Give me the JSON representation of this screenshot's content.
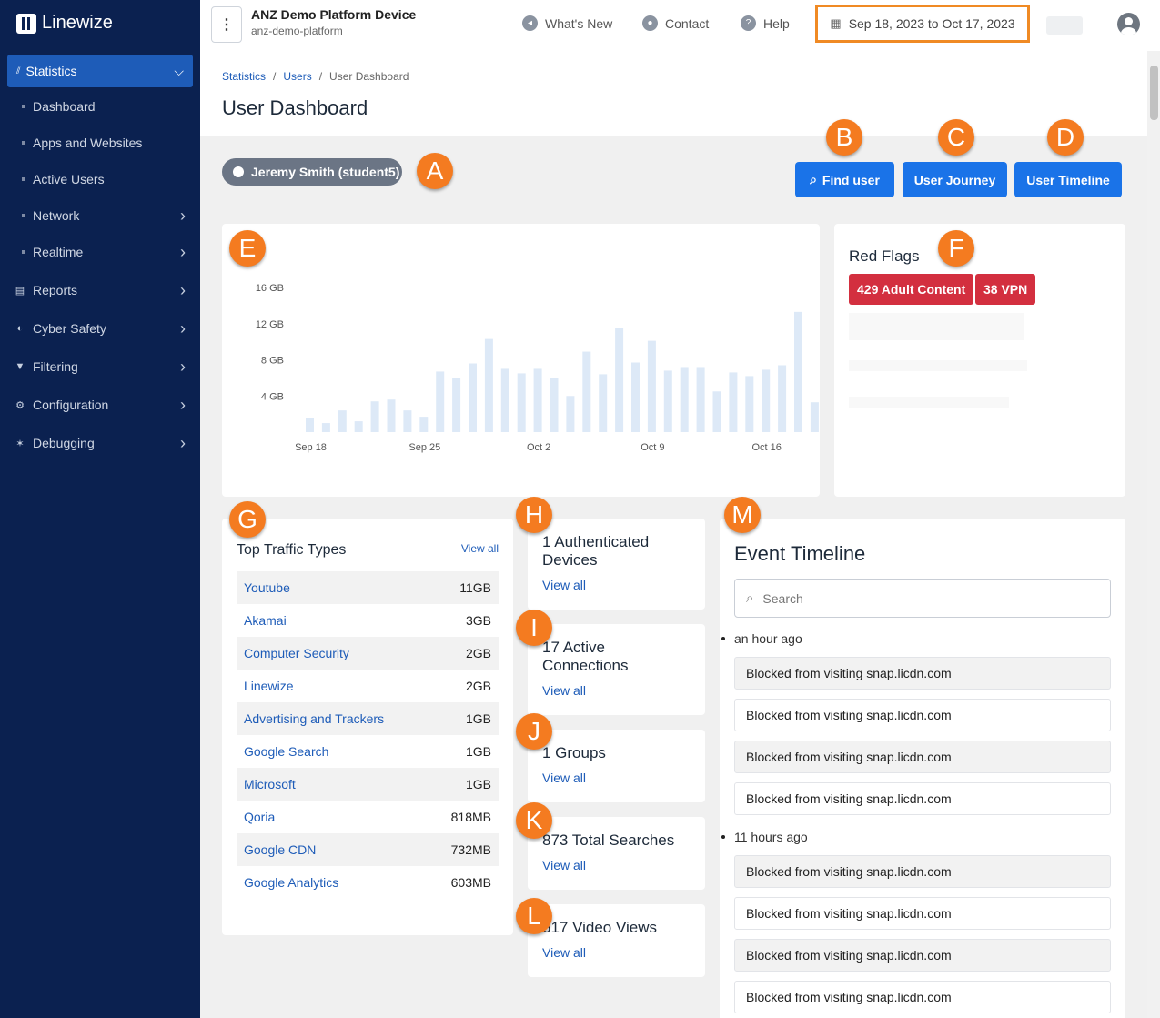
{
  "sidebar": {
    "logo": "Linewize",
    "active": "Statistics",
    "sub_items": [
      "Dashboard",
      "Apps and Websites",
      "Active Users",
      "Network",
      "Realtime"
    ],
    "top_items": [
      "Reports",
      "Cyber Safety",
      "Filtering",
      "Configuration",
      "Debugging"
    ]
  },
  "topbar": {
    "device_title": "ANZ Demo Platform Device",
    "device_sub": "anz-demo-platform",
    "whats_new": "What's New",
    "contact": "Contact",
    "help": "Help",
    "date_range": "Sep 18, 2023 to Oct 17, 2023"
  },
  "breadcrumb": [
    "Statistics",
    "Users",
    "User Dashboard"
  ],
  "page_title": "User Dashboard",
  "user_pill": "Jeremy Smith (student5)",
  "buttons": {
    "find_user": "Find user",
    "user_journey": "User Journey",
    "user_timeline": "User Timeline"
  },
  "badges": [
    "A",
    "B",
    "C",
    "D",
    "E",
    "F",
    "G",
    "H",
    "I",
    "J",
    "K",
    "L",
    "M"
  ],
  "chart_data": {
    "type": "bar",
    "y_ticks": [
      "16 GB",
      "12 GB",
      "8 GB",
      "4 GB"
    ],
    "x_ticks": [
      "Sep 18",
      "Sep 25",
      "Oct 2",
      "Oct 9",
      "Oct 16"
    ],
    "ylim": [
      0,
      16
    ],
    "values": [
      1.6,
      1.0,
      2.4,
      1.2,
      3.4,
      3.6,
      2.4,
      1.7,
      6.7,
      6.0,
      7.6,
      10.3,
      7.0,
      6.5,
      7.0,
      6.0,
      4.0,
      8.9,
      6.4,
      11.5,
      7.7,
      10.1,
      6.8,
      7.2,
      7.2,
      4.5,
      6.6,
      6.2,
      6.9,
      7.4,
      13.3,
      3.3
    ],
    "color": "#dde9f7"
  },
  "red_flags": {
    "title": "Red Flags",
    "tags": [
      "429 Adult Content",
      "38 VPN"
    ]
  },
  "top_traffic": {
    "title": "Top Traffic Types",
    "view_all": "View all",
    "rows": [
      {
        "name": "Youtube",
        "value": "11GB"
      },
      {
        "name": "Akamai",
        "value": "3GB"
      },
      {
        "name": "Computer Security",
        "value": "2GB"
      },
      {
        "name": "Linewize",
        "value": "2GB"
      },
      {
        "name": "Advertising and Trackers",
        "value": "1GB"
      },
      {
        "name": "Google Search",
        "value": "1GB"
      },
      {
        "name": "Microsoft",
        "value": "1GB"
      },
      {
        "name": "Qoria",
        "value": "818MB"
      },
      {
        "name": "Google CDN",
        "value": "732MB"
      },
      {
        "name": "Google Analytics",
        "value": "603MB"
      }
    ]
  },
  "stats": [
    {
      "title": "1 Authenticated Devices",
      "link": "View all"
    },
    {
      "title": "17 Active Connections",
      "link": "View all"
    },
    {
      "title": "1 Groups",
      "link": "View all"
    },
    {
      "title": "873 Total Searches",
      "link": "View all"
    },
    {
      "title": "617 Video Views",
      "link": "View all"
    }
  ],
  "event_timeline": {
    "title": "Event Timeline",
    "search_placeholder": "Search",
    "groups": [
      {
        "time": "an hour ago",
        "events": [
          "Blocked from visiting snap.licdn.com",
          "Blocked from visiting snap.licdn.com",
          "Blocked from visiting snap.licdn.com",
          "Blocked from visiting snap.licdn.com"
        ]
      },
      {
        "time": "11 hours ago",
        "events": [
          "Blocked from visiting snap.licdn.com",
          "Blocked from visiting snap.licdn.com",
          "Blocked from visiting snap.licdn.com",
          "Blocked from visiting snap.licdn.com"
        ]
      }
    ]
  },
  "colors": {
    "sidebar_bg": "#0b2150",
    "active_nav": "#1e5cb8",
    "primary_button": "#1a73e8",
    "red_flag": "#d32f3f",
    "badge": "#f47b20",
    "highlight_border": "#f08a24"
  }
}
